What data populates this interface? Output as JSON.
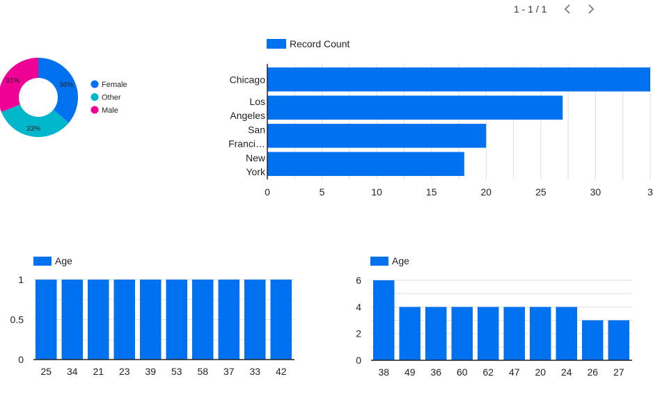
{
  "pager": {
    "text": "1 - 1 / 1",
    "prev_icon": "chevron-left-icon",
    "next_icon": "chevron-right-icon"
  },
  "colors": {
    "bar": "#0072F0",
    "grid": "#dddddd",
    "axis": "#222222",
    "female": "#0072F0",
    "other": "#00B6CB",
    "male": "#F10096"
  },
  "chart_data": [
    {
      "id": "gender-donut",
      "type": "pie",
      "donut": true,
      "categories": [
        "Female",
        "Other",
        "Male"
      ],
      "values": [
        36,
        33,
        31
      ],
      "labels": [
        "36%",
        "33%",
        "31%"
      ],
      "colors": [
        "#0072F0",
        "#00B6CB",
        "#F10096"
      ],
      "legend": "right"
    },
    {
      "id": "city-bar",
      "type": "bar",
      "orientation": "horizontal",
      "categories": [
        [
          "Chicago"
        ],
        [
          "Los",
          "Angeles"
        ],
        [
          "San",
          "Franci…"
        ],
        [
          "New",
          "York"
        ]
      ],
      "series": [
        {
          "name": "Record Count",
          "values": [
            35,
            27,
            20,
            18
          ]
        }
      ],
      "xlim": [
        0,
        35
      ],
      "xticks": [
        "0",
        "5",
        "10",
        "15",
        "20",
        "25",
        "30",
        "3"
      ],
      "legend": "top-left",
      "grid": true
    },
    {
      "id": "age-bar-1",
      "type": "bar",
      "categories": [
        "25",
        "34",
        "21",
        "23",
        "39",
        "53",
        "58",
        "37",
        "33",
        "42"
      ],
      "series": [
        {
          "name": "Age",
          "values": [
            1,
            1,
            1,
            1,
            1,
            1,
            1,
            1,
            1,
            1
          ]
        }
      ],
      "ylim": [
        0,
        1
      ],
      "yticks": [
        "0",
        "0.5",
        "1"
      ],
      "legend": "top-left",
      "grid": true
    },
    {
      "id": "age-bar-2",
      "type": "bar",
      "categories": [
        "38",
        "49",
        "36",
        "60",
        "62",
        "47",
        "20",
        "24",
        "26",
        "27"
      ],
      "series": [
        {
          "name": "Age",
          "values": [
            6,
            4,
            4,
            4,
            4,
            4,
            4,
            4,
            3,
            3
          ]
        }
      ],
      "ylim": [
        0,
        6
      ],
      "yticks": [
        "0",
        "2",
        "4",
        "6"
      ],
      "legend": "top-left",
      "grid": true
    }
  ]
}
